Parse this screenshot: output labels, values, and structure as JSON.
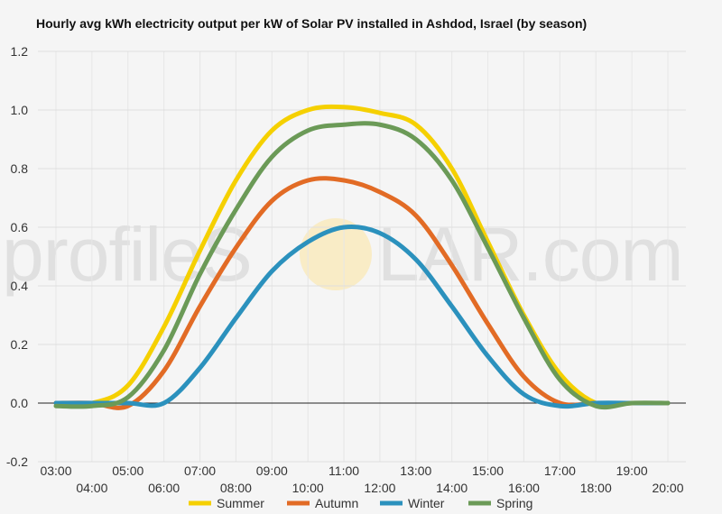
{
  "chart_data": {
    "type": "line",
    "title": "Hourly avg kWh electricity output per kW of Solar PV installed in Ashdod, Israel (by season)",
    "xlabel": "",
    "ylabel": "",
    "ylim": [
      -0.2,
      1.2
    ],
    "yticks": [
      "-0.2",
      "0.0",
      "0.2",
      "0.4",
      "0.6",
      "0.8",
      "1.0",
      "1.2"
    ],
    "ytick_values": [
      -0.2,
      0.0,
      0.2,
      0.4,
      0.6,
      0.8,
      1.0,
      1.2
    ],
    "categories": [
      "03:00",
      "04:00",
      "05:00",
      "06:00",
      "07:00",
      "08:00",
      "09:00",
      "10:00",
      "11:00",
      "12:00",
      "13:00",
      "14:00",
      "15:00",
      "16:00",
      "17:00",
      "18:00",
      "19:00",
      "20:00"
    ],
    "grid": true,
    "legend_position": "bottom",
    "series": [
      {
        "name": "Summer",
        "color": "#f5d000",
        "values": [
          0.0,
          0.0,
          0.06,
          0.26,
          0.52,
          0.76,
          0.93,
          1.0,
          1.01,
          0.99,
          0.95,
          0.8,
          0.55,
          0.3,
          0.1,
          0.0,
          0.0,
          0.0
        ]
      },
      {
        "name": "Autumn",
        "color": "#e26b25",
        "values": [
          0.0,
          0.0,
          -0.01,
          0.11,
          0.33,
          0.53,
          0.69,
          0.76,
          0.76,
          0.72,
          0.64,
          0.47,
          0.27,
          0.09,
          0.0,
          0.0,
          0.0,
          0.0
        ]
      },
      {
        "name": "Winter",
        "color": "#2b91bd",
        "values": [
          0.0,
          0.0,
          0.0,
          0.0,
          0.12,
          0.29,
          0.45,
          0.55,
          0.6,
          0.58,
          0.49,
          0.33,
          0.16,
          0.03,
          -0.01,
          0.0,
          0.0,
          0.0
        ]
      },
      {
        "name": "Spring",
        "color": "#6b9a57",
        "values": [
          -0.01,
          -0.01,
          0.02,
          0.18,
          0.44,
          0.66,
          0.84,
          0.93,
          0.95,
          0.95,
          0.9,
          0.76,
          0.53,
          0.29,
          0.08,
          -0.01,
          0.0,
          0.0
        ]
      }
    ]
  },
  "watermark": {
    "text_left": "profileS",
    "text_right": "LAR.com"
  }
}
